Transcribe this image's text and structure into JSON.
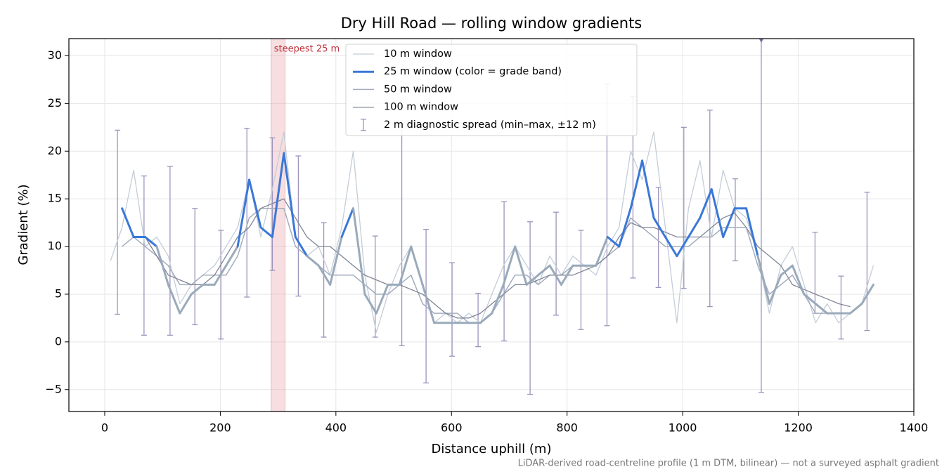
{
  "chart_data": {
    "type": "line",
    "title": "Dry Hill Road — rolling window gradients",
    "xlabel": "Distance uphill (m)",
    "ylabel": "Gradient (%)",
    "footnote": "LiDAR-derived road-centreline profile (1 m DTM, bilinear) — not a surveyed asphalt gradient",
    "xlim": [
      -62,
      1400
    ],
    "ylim": [
      -7.3,
      31.8
    ],
    "xticks": [
      0,
      200,
      400,
      600,
      800,
      1000,
      1200,
      1400
    ],
    "yticks": [
      {
        "value": -5,
        "label": "−5"
      },
      0,
      5,
      10,
      15,
      20,
      25,
      30
    ],
    "grid": true,
    "legend": "upper center",
    "highlight": {
      "x": [
        288,
        312
      ],
      "label": "steepest 25 m",
      "color": "#e8a0a6"
    },
    "x": [
      10,
      30,
      50,
      70,
      90,
      110,
      130,
      150,
      170,
      190,
      210,
      230,
      250,
      270,
      290,
      310,
      330,
      350,
      370,
      390,
      410,
      430,
      450,
      470,
      490,
      510,
      530,
      550,
      570,
      590,
      610,
      630,
      650,
      670,
      690,
      710,
      730,
      750,
      770,
      790,
      810,
      830,
      850,
      870,
      890,
      910,
      930,
      950,
      970,
      990,
      1010,
      1030,
      1050,
      1070,
      1090,
      1110,
      1130,
      1150,
      1170,
      1190,
      1210,
      1230,
      1250,
      1270,
      1290,
      1310,
      1330
    ],
    "series": [
      {
        "name": "10 m window",
        "color": "#c4cdd8",
        "width": 1.3,
        "values": [
          8.5,
          12,
          18,
          10,
          11,
          9,
          4,
          6,
          7,
          8,
          10,
          12,
          17,
          11,
          16,
          22,
          11,
          9,
          10,
          7,
          12,
          20,
          7,
          1,
          5,
          8,
          10,
          6,
          2,
          3,
          2,
          3,
          2,
          5,
          8,
          10,
          8,
          6,
          9,
          7,
          9,
          8,
          7,
          10,
          12,
          20,
          17,
          22,
          12,
          2,
          14,
          19,
          11,
          18,
          14,
          13,
          9,
          3,
          8,
          10,
          6,
          2,
          4,
          2,
          3,
          4,
          8
        ]
      },
      {
        "name": "25 m window (color = grade band)",
        "color": "#3a78d8",
        "width": 3,
        "bands": [
          10,
          20
        ],
        "band_colors": [
          "#9aaaba",
          "#3a78d8",
          "#e8a33c"
        ],
        "values": [
          null,
          14,
          11,
          11,
          10,
          6,
          3,
          5,
          6,
          6,
          8,
          10,
          17,
          12,
          11,
          19.8,
          11,
          9,
          8,
          6,
          11,
          14,
          5,
          3,
          6,
          6,
          10,
          6,
          2,
          2,
          2,
          2,
          2,
          3,
          6,
          10,
          6,
          7,
          8,
          6,
          8,
          8,
          8,
          11,
          10,
          14,
          19,
          13,
          11,
          9,
          11,
          13,
          16,
          11,
          14,
          14,
          9,
          4,
          7,
          8,
          5,
          4,
          3,
          3,
          3,
          4,
          6
        ]
      },
      {
        "name": "50 m window",
        "color": "#a3adbe",
        "width": 1.5,
        "values": [
          null,
          10,
          11,
          10,
          9,
          8,
          6,
          6,
          7,
          7,
          7,
          9,
          13,
          14,
          14,
          14,
          10,
          9,
          8,
          7,
          7,
          7,
          6,
          5,
          5,
          6,
          7,
          4,
          3,
          3,
          3,
          2,
          2,
          3,
          5,
          7,
          7,
          6,
          7,
          7,
          8,
          8,
          8,
          9,
          10,
          13,
          12,
          11,
          10,
          10,
          10,
          11,
          11,
          12,
          12,
          12,
          8,
          5,
          6,
          7,
          5,
          3,
          3,
          3,
          3,
          4,
          null
        ]
      },
      {
        "name": "100 m window",
        "color": "#7f8596",
        "width": 1.3,
        "values": [
          null,
          null,
          null,
          11,
          9,
          7,
          6.5,
          6,
          6,
          7,
          9,
          11,
          12,
          14,
          14.5,
          15,
          13,
          11,
          10,
          10,
          9,
          8,
          7,
          6.5,
          6,
          6,
          5.5,
          5,
          4,
          3,
          2.5,
          2.5,
          3,
          4,
          5,
          6,
          6,
          6.5,
          7,
          7,
          7,
          7.5,
          8,
          9,
          11,
          12.5,
          12,
          12,
          11.5,
          11,
          11,
          11,
          12,
          13,
          13.5,
          12,
          10,
          9,
          8,
          6,
          5.5,
          5,
          4.5,
          4,
          3.7,
          null,
          null
        ]
      }
    ],
    "errorbars": {
      "name": "2 m diagnostic spread (min–max, ±12 m)",
      "color": "#9d94bd",
      "marker_color": "#7b6fa6",
      "x": [
        22,
        68,
        113,
        156,
        201,
        246,
        290,
        335,
        379,
        468,
        514,
        556,
        601,
        646,
        691,
        736,
        781,
        824,
        869,
        914,
        958,
        1002,
        1047,
        1091,
        1136,
        1229,
        1274,
        1319
      ],
      "lo": [
        2.9,
        0.7,
        0.7,
        1.8,
        0.3,
        4.7,
        7.5,
        4.8,
        0.5,
        0.5,
        -0.4,
        -4.3,
        -1.5,
        -0.5,
        0.1,
        -5.5,
        2.8,
        1.3,
        1.7,
        6.7,
        5.7,
        5.6,
        3.7,
        8.5,
        -5.3,
        3.0,
        0.3,
        1.2
      ],
      "hi": [
        22.2,
        17.4,
        18.4,
        14.0,
        11.7,
        22.4,
        21.4,
        19.5,
        12.5,
        11.1,
        22.9,
        11.8,
        8.3,
        5.1,
        14.7,
        12.6,
        13.6,
        11.7,
        27.1,
        25.7,
        16.2,
        22.5,
        24.3,
        17.1,
        33,
        11.5,
        6.9,
        15.7
      ]
    }
  }
}
